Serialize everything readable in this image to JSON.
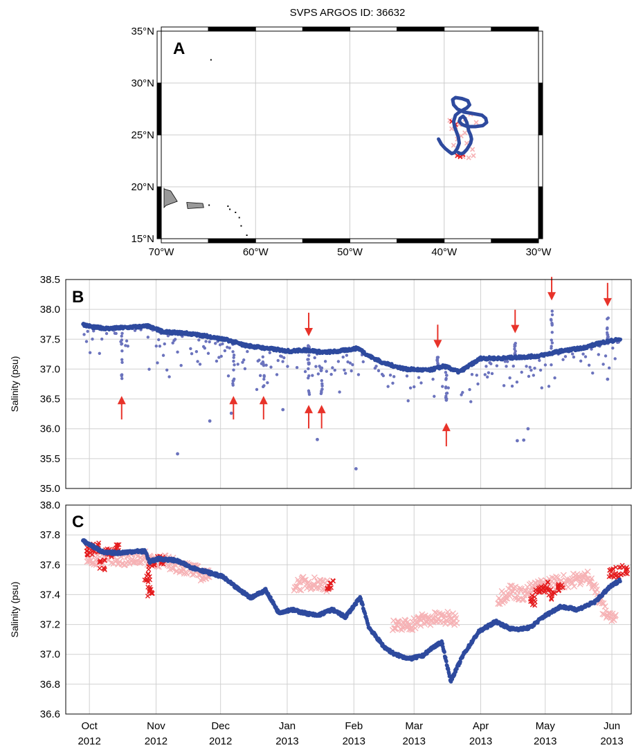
{
  "colors": {
    "observed": "#2e4a9e",
    "observed_light": "#6b73bd",
    "model_dark": "#e41a1c",
    "model_light": "#f6b2b5",
    "arrow": "#e8332a",
    "land": "#999999"
  },
  "chart_data": [
    {
      "panel": "A",
      "type": "scatter",
      "title": "SVPS ARGOS ID: 36632",
      "map": true,
      "xlim": [
        -70,
        -30
      ],
      "ylim": [
        15,
        35
      ],
      "xticks": [
        -70,
        -60,
        -50,
        -40,
        -30
      ],
      "xtick_labels": [
        "70°W",
        "60°W",
        "50°W",
        "40°W",
        "30°W"
      ],
      "yticks": [
        15,
        20,
        25,
        30,
        35
      ],
      "ytick_labels": [
        "15°N",
        "20°N",
        "25°N",
        "30°N",
        "35°N"
      ],
      "grid": true,
      "series": [
        {
          "style": "observed-track",
          "lon": [
            -40.6,
            -40.3,
            -39.9,
            -39.5,
            -39.2,
            -38.9,
            -38.6,
            -38.4,
            -38.5,
            -38.7,
            -38.9,
            -39.0,
            -38.8,
            -38.4,
            -38.0,
            -37.6,
            -37.3,
            -37.5,
            -38.1,
            -38.8,
            -39.1,
            -39.0,
            -38.6,
            -37.9,
            -37.2,
            -36.6,
            -36.0,
            -35.6,
            -35.5,
            -35.9,
            -36.7,
            -37.5,
            -38.1,
            -38.4,
            -38.3,
            -38.0,
            -37.8,
            -37.6,
            -37.5,
            -37.4,
            -37.2,
            -37.1,
            -37.2,
            -37.4,
            -37.6,
            -37.8,
            -37.9,
            -38.1,
            -38.3,
            -38.5
          ],
          "lat": [
            24.6,
            24.1,
            23.7,
            23.4,
            23.2,
            23.3,
            23.7,
            24.2,
            24.8,
            25.3,
            25.8,
            26.3,
            26.9,
            27.2,
            27.4,
            27.6,
            27.9,
            28.3,
            28.5,
            28.6,
            28.4,
            27.9,
            27.5,
            27.2,
            27.1,
            27.0,
            26.9,
            26.6,
            26.2,
            25.9,
            25.8,
            25.8,
            26.0,
            26.3,
            26.6,
            26.8,
            26.6,
            26.2,
            25.8,
            25.4,
            25.0,
            24.6,
            24.2,
            23.9,
            23.6,
            23.4,
            23.3,
            23.2,
            23.2,
            23.3
          ]
        },
        {
          "style": "model-light",
          "lon": [
            -39.4,
            -38.8,
            -38.2,
            -37.6,
            -37.0,
            -36.9,
            -37.4,
            -38.0,
            -38.6,
            -39.0,
            -38.4,
            -37.8,
            -37.2,
            -36.6,
            -37.8,
            -38.6,
            -39.2
          ],
          "lat": [
            26.4,
            25.8,
            24.9,
            24.2,
            23.6,
            23.0,
            22.8,
            22.9,
            23.2,
            24.0,
            26.0,
            26.5,
            27.0,
            26.2,
            25.2,
            24.6,
            25.6
          ]
        },
        {
          "style": "model-dark",
          "lon": [
            -38.6,
            -38.3,
            -38.0,
            -39.2,
            -38.8
          ],
          "lat": [
            23.0,
            22.9,
            23.1,
            26.3,
            26.0
          ]
        }
      ],
      "land": [
        {
          "name": "Hispaniola",
          "lon": [
            -74,
            -71.5,
            -69.0,
            -68.3,
            -69.5,
            -71.5,
            -74
          ],
          "lat": [
            19.9,
            19.8,
            19.6,
            18.6,
            18.2,
            18.0,
            18.6
          ]
        },
        {
          "name": "Puerto Rico",
          "lon": [
            -67.3,
            -65.6,
            -65.5,
            -67.2
          ],
          "lat": [
            18.5,
            18.4,
            18.0,
            17.9
          ]
        }
      ]
    },
    {
      "panel": "B",
      "type": "scatter",
      "xlim": [
        "2012-09-20",
        "2013-06-10"
      ],
      "ylim": [
        35.0,
        38.5
      ],
      "ylabel": "Salinity (psu)",
      "yticks": [
        35.0,
        35.5,
        36.0,
        36.5,
        37.0,
        37.5,
        38.0,
        38.5
      ],
      "ytick_labels": [
        "35.0",
        "35.5",
        "36.0",
        "36.5",
        "37.0",
        "37.5",
        "38.0",
        "38.5"
      ],
      "grid": true,
      "baseline": {
        "dates": [
          "2012-09-28",
          "2012-10-03",
          "2012-10-10",
          "2012-10-20",
          "2012-10-28",
          "2012-11-05",
          "2012-11-15",
          "2012-11-25",
          "2012-12-05",
          "2012-12-12",
          "2012-12-22",
          "2013-01-02",
          "2013-01-10",
          "2013-01-18",
          "2013-01-25",
          "2013-02-03",
          "2013-02-08",
          "2013-02-15",
          "2013-02-25",
          "2013-03-08",
          "2013-03-15",
          "2013-03-22",
          "2013-04-01",
          "2013-04-10",
          "2013-04-20",
          "2013-04-28",
          "2013-05-08",
          "2013-05-18",
          "2013-05-28",
          "2013-06-05"
        ],
        "values": [
          37.75,
          37.7,
          37.68,
          37.7,
          37.72,
          37.62,
          37.6,
          37.55,
          37.48,
          37.4,
          37.35,
          37.3,
          37.32,
          37.28,
          37.3,
          37.35,
          37.22,
          37.1,
          37.0,
          36.98,
          37.05,
          36.95,
          37.18,
          37.18,
          37.2,
          37.22,
          37.3,
          37.35,
          37.45,
          37.5
        ]
      },
      "outliers": [
        {
          "date": "2012-11-11",
          "value": 35.58
        },
        {
          "date": "2012-11-26",
          "value": 36.13
        },
        {
          "date": "2012-12-06",
          "value": 36.26
        },
        {
          "date": "2012-12-30",
          "value": 36.32
        },
        {
          "date": "2013-01-15",
          "value": 35.82
        },
        {
          "date": "2013-02-02",
          "value": 35.33
        },
        {
          "date": "2013-03-16",
          "value": 36.48
        },
        {
          "date": "2013-04-18",
          "value": 35.8
        },
        {
          "date": "2013-04-21",
          "value": 35.81
        },
        {
          "date": "2013-04-23",
          "value": 36.0
        },
        {
          "date": "2013-05-30",
          "value": 36.83
        }
      ],
      "arrows": [
        {
          "date": "2012-10-16",
          "value": 36.55,
          "direction": "up"
        },
        {
          "date": "2012-12-07",
          "value": 36.55,
          "direction": "up"
        },
        {
          "date": "2012-12-21",
          "value": 36.55,
          "direction": "up"
        },
        {
          "date": "2013-01-11",
          "value": 37.55,
          "direction": "down"
        },
        {
          "date": "2013-01-11",
          "value": 36.4,
          "direction": "up"
        },
        {
          "date": "2013-01-17",
          "value": 36.4,
          "direction": "up"
        },
        {
          "date": "2013-03-12",
          "value": 37.35,
          "direction": "down"
        },
        {
          "date": "2013-03-16",
          "value": 36.1,
          "direction": "up"
        },
        {
          "date": "2013-04-17",
          "value": 37.6,
          "direction": "down"
        },
        {
          "date": "2013-05-04",
          "value": 38.15,
          "direction": "down"
        },
        {
          "date": "2013-05-30",
          "value": 38.05,
          "direction": "down"
        }
      ]
    },
    {
      "panel": "C",
      "type": "scatter",
      "xlim": [
        "2012-09-20",
        "2013-06-10"
      ],
      "ylim": [
        36.6,
        38.0
      ],
      "ylabel": "Salinity (psu)",
      "yticks": [
        36.6,
        36.8,
        37.0,
        37.2,
        37.4,
        37.6,
        37.8,
        38.0
      ],
      "ytick_labels": [
        "36.6",
        "36.8",
        "37.0",
        "37.2",
        "37.4",
        "37.6",
        "37.8",
        "38.0"
      ],
      "xticks": [
        "2012-10-01",
        "2012-11-01",
        "2012-12-01",
        "2013-01-01",
        "2013-02-01",
        "2013-03-01",
        "2013-04-01",
        "2013-05-01",
        "2013-06-01"
      ],
      "xtick_labels": [
        [
          "Oct",
          "2012"
        ],
        [
          "Nov",
          "2012"
        ],
        [
          "Dec",
          "2012"
        ],
        [
          "Jan",
          "2013"
        ],
        [
          "Feb",
          "2013"
        ],
        [
          "Mar",
          "2013"
        ],
        [
          "Apr",
          "2013"
        ],
        [
          "May",
          "2013"
        ],
        [
          "Jun",
          "2013"
        ]
      ],
      "grid": true,
      "observed": {
        "dates": [
          "2012-09-28",
          "2012-10-03",
          "2012-10-08",
          "2012-10-15",
          "2012-10-22",
          "2012-10-27",
          "2012-10-29",
          "2012-11-02",
          "2012-11-10",
          "2012-11-18",
          "2012-11-25",
          "2012-12-02",
          "2012-12-08",
          "2012-12-15",
          "2012-12-22",
          "2012-12-28",
          "2013-01-03",
          "2013-01-08",
          "2013-01-15",
          "2013-01-22",
          "2013-01-28",
          "2013-02-04",
          "2013-02-08",
          "2013-02-15",
          "2013-02-20",
          "2013-02-27",
          "2013-03-05",
          "2013-03-10",
          "2013-03-14",
          "2013-03-18",
          "2013-03-24",
          "2013-03-31",
          "2013-04-08",
          "2013-04-15",
          "2013-04-20",
          "2013-04-24",
          "2013-04-30",
          "2013-05-08",
          "2013-05-16",
          "2013-05-24",
          "2013-05-31",
          "2013-06-05"
        ],
        "values": [
          37.76,
          37.72,
          37.68,
          37.68,
          37.69,
          37.69,
          37.62,
          37.64,
          37.63,
          37.58,
          37.55,
          37.52,
          37.45,
          37.38,
          37.43,
          37.28,
          37.3,
          37.28,
          37.26,
          37.3,
          37.25,
          37.38,
          37.18,
          37.05,
          37.0,
          36.97,
          36.99,
          37.05,
          37.08,
          36.82,
          37.0,
          37.15,
          37.22,
          37.17,
          37.17,
          37.18,
          37.25,
          37.32,
          37.3,
          37.35,
          37.45,
          37.5
        ]
      },
      "model_light": {
        "dates": [
          "2012-09-30",
          "2012-10-05",
          "2012-10-10",
          "2012-10-18",
          "2012-10-25",
          "2012-11-05",
          "2012-11-15",
          "2012-11-25",
          "2013-01-05",
          "2013-01-12",
          "2013-01-19",
          "2013-02-20",
          "2013-02-27",
          "2013-03-05",
          "2013-03-12",
          "2013-03-20",
          "2013-04-10",
          "2013-04-15",
          "2013-04-20",
          "2013-04-27",
          "2013-05-05",
          "2013-05-15",
          "2013-05-22",
          "2013-05-28",
          "2013-06-03"
        ],
        "values": [
          37.62,
          37.64,
          37.66,
          37.63,
          37.65,
          37.62,
          37.58,
          37.52,
          37.47,
          37.48,
          37.47,
          37.18,
          37.2,
          37.23,
          37.24,
          37.24,
          37.38,
          37.43,
          37.4,
          37.45,
          37.48,
          37.5,
          37.52,
          37.3,
          37.22
        ]
      },
      "model_dark": {
        "dates": [
          "2012-10-01",
          "2012-10-04",
          "2012-10-07",
          "2012-10-10",
          "2012-10-14",
          "2012-10-28",
          "2012-10-29",
          "2012-10-30",
          "2012-11-03",
          "2013-01-21",
          "2013-04-25",
          "2013-04-28",
          "2013-05-01",
          "2013-05-04",
          "2013-05-08",
          "2013-06-01",
          "2013-06-04",
          "2013-06-07"
        ],
        "values": [
          37.7,
          37.72,
          37.6,
          37.68,
          37.7,
          37.52,
          37.42,
          37.6,
          37.63,
          37.46,
          37.36,
          37.42,
          37.45,
          37.4,
          37.44,
          37.55,
          37.55,
          37.57
        ]
      }
    }
  ]
}
